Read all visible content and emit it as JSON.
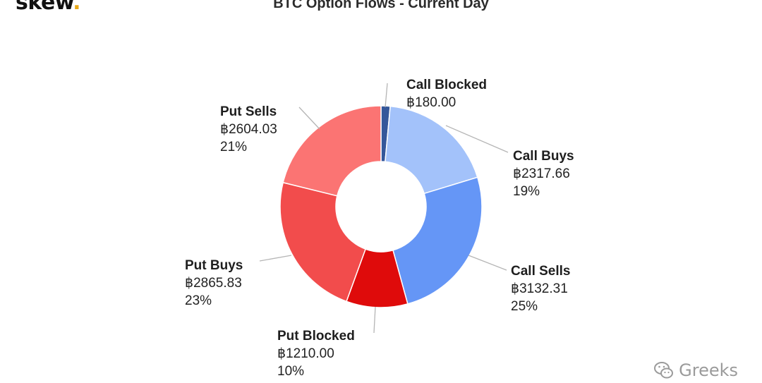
{
  "logo": {
    "text": "skew",
    "dot": "."
  },
  "chart_data": {
    "type": "pie",
    "subtype": "donut",
    "title": "BTC Option Flows - Current Day",
    "currency_symbol": "฿",
    "slices": [
      {
        "name": "Call Blocked",
        "value": 180.0,
        "value_label": "฿180.00",
        "percent_label": "1%",
        "color": "#34579a"
      },
      {
        "name": "Call Buys",
        "value": 2317.66,
        "value_label": "฿2317.66",
        "percent_label": "19%",
        "color": "#a3c2fa"
      },
      {
        "name": "Call Sells",
        "value": 3132.31,
        "value_label": "฿3132.31",
        "percent_label": "25%",
        "color": "#6596f6"
      },
      {
        "name": "Put Blocked",
        "value": 1210.0,
        "value_label": "฿1210.00",
        "percent_label": "10%",
        "color": "#df0b0b"
      },
      {
        "name": "Put Buys",
        "value": 2865.83,
        "value_label": "฿2865.83",
        "percent_label": "23%",
        "color": "#f24c4c"
      },
      {
        "name": "Put Sells",
        "value": 2604.03,
        "value_label": "฿2604.03",
        "percent_label": "21%",
        "color": "#fb7473"
      }
    ],
    "legend": "none"
  },
  "watermark": {
    "text": "Greeks",
    "icon": "wechat-icon"
  }
}
